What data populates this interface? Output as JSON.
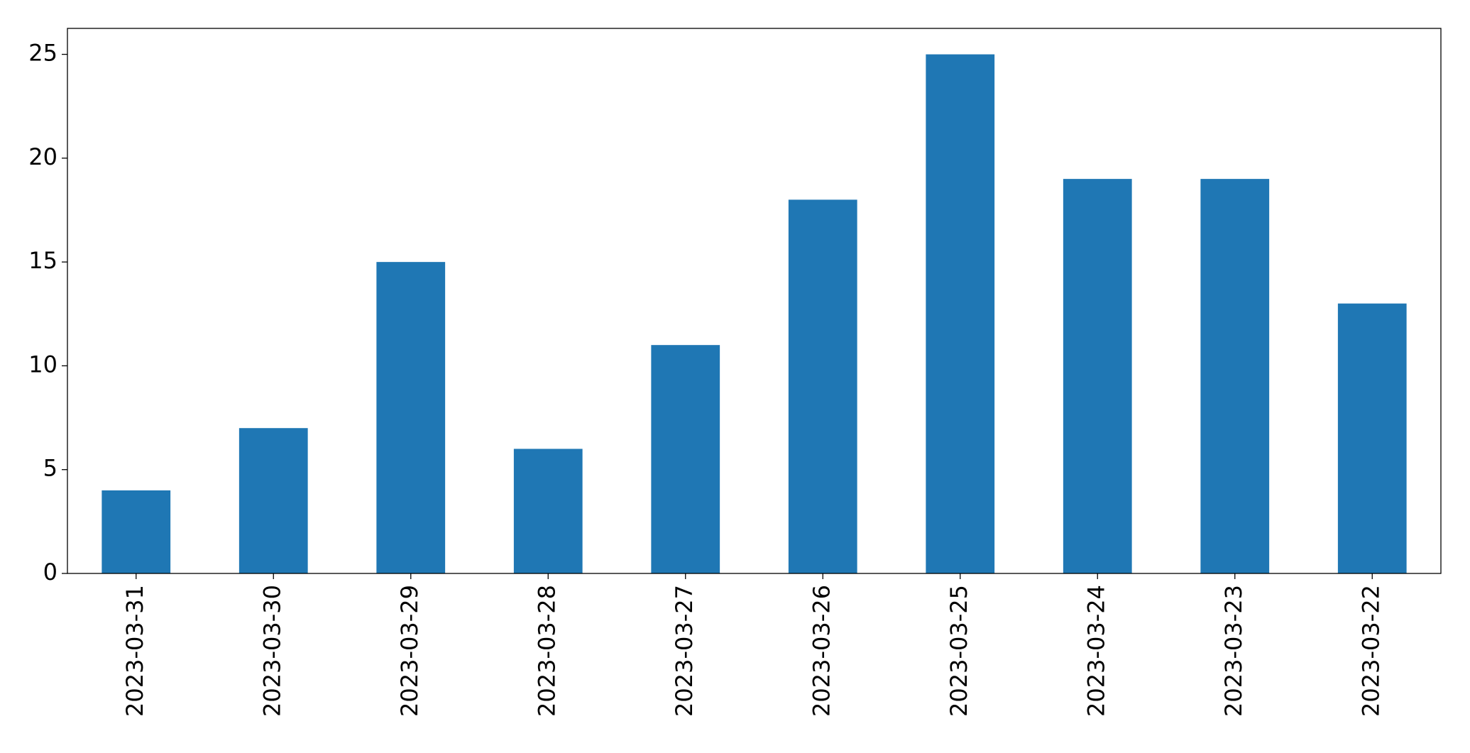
{
  "chart_data": {
    "type": "bar",
    "categories": [
      "2023-03-31",
      "2023-03-30",
      "2023-03-29",
      "2023-03-28",
      "2023-03-27",
      "2023-03-26",
      "2023-03-25",
      "2023-03-24",
      "2023-03-23",
      "2023-03-22"
    ],
    "values": [
      4,
      7,
      15,
      6,
      11,
      18,
      25,
      19,
      19,
      13
    ],
    "color": "#1f77b4",
    "ylim": [
      0,
      26.25
    ],
    "yticks": [
      0,
      5,
      10,
      15,
      20,
      25
    ],
    "grid": false
  }
}
